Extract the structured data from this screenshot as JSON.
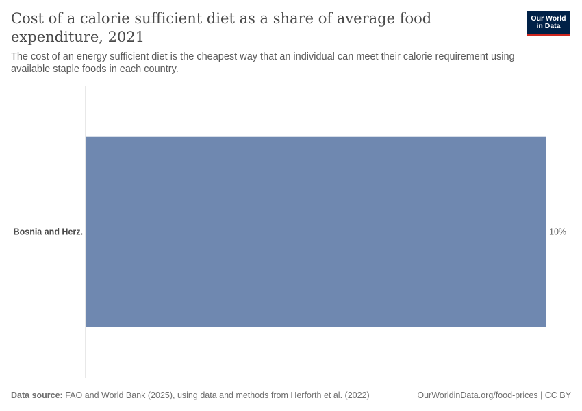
{
  "header": {
    "title": "Cost of a calorie sufficient diet as a share of average food expenditure, 2021",
    "subtitle": "The cost of an energy sufficient diet is the cheapest way that an individual can meet their calorie requirement using available staple foods in each country.",
    "logo_line1": "Our World",
    "logo_line2": "in Data"
  },
  "footer": {
    "source_label": "Data source:",
    "source_text": "FAO and World Bank (2025), using data and methods from Herforth et al. (2022)",
    "url_text": "OurWorldinData.org/food-prices | CC BY"
  },
  "colors": {
    "bar": "#6f88b0",
    "axis": "#d0d0d0",
    "brand": "#002147",
    "brand_accent": "#ce261e"
  },
  "chart_data": {
    "type": "bar",
    "orientation": "horizontal",
    "categories": [
      "Bosnia and Herz."
    ],
    "values": [
      10
    ],
    "value_labels": [
      "10%"
    ],
    "unit": "%",
    "xlim": [
      0,
      10
    ],
    "grid": false,
    "legend": "none"
  }
}
